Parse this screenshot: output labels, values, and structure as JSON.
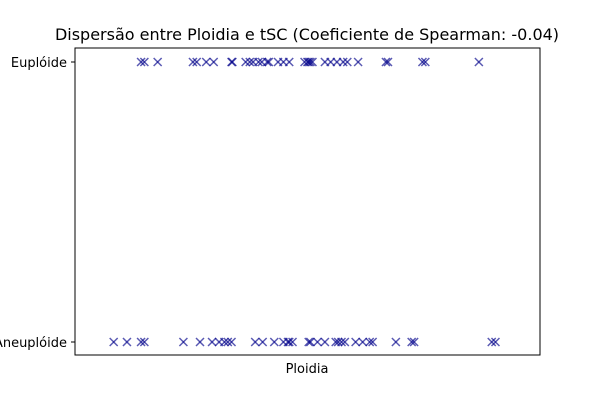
{
  "chart_data": {
    "type": "scatter",
    "title": "Dispersão entre Ploidia e tSC (Coeficiente de Spearman: -0.04)",
    "xlabel": "Ploidia",
    "ylabel": "",
    "x_ticks_shown": false,
    "grid": false,
    "marker": "x",
    "color": "#00008b",
    "y_categories": [
      "Aneuplóide",
      "Euplóide"
    ],
    "y_tick_labels": [
      "Aneuplóide",
      "Euplóide"
    ],
    "x_range": [
      0,
      100
    ],
    "series": [
      {
        "category": "Euplóide",
        "x": [
          11.1,
          11.9,
          15.1,
          23.6,
          24.5,
          26.8,
          28.6,
          32.9,
          33.1,
          36.3,
          37.3,
          38.1,
          39.4,
          40.2,
          41.5,
          41.9,
          44.1,
          45.4,
          46.8,
          50.5,
          51.2,
          51.5,
          51.9,
          52.4,
          55.4,
          56.8,
          58.3,
          59.8,
          60.8,
          63.4,
          70.1,
          70.6,
          78.9,
          79.6,
          92.5
        ]
      },
      {
        "category": "Aneuplóide",
        "x": [
          4.5,
          7.7,
          11.1,
          11.9,
          21.3,
          25.3,
          28.2,
          29.9,
          31.2,
          32.0,
          32.9,
          38.6,
          40.4,
          43.2,
          45.4,
          46.5,
          46.8,
          47.6,
          51.5,
          51.9,
          53.6,
          55.4,
          58.0,
          58.6,
          59.4,
          60.2,
          62.8,
          64.5,
          66.2,
          66.9,
          72.5,
          76.3,
          76.9,
          95.6,
          96.5
        ]
      }
    ]
  }
}
